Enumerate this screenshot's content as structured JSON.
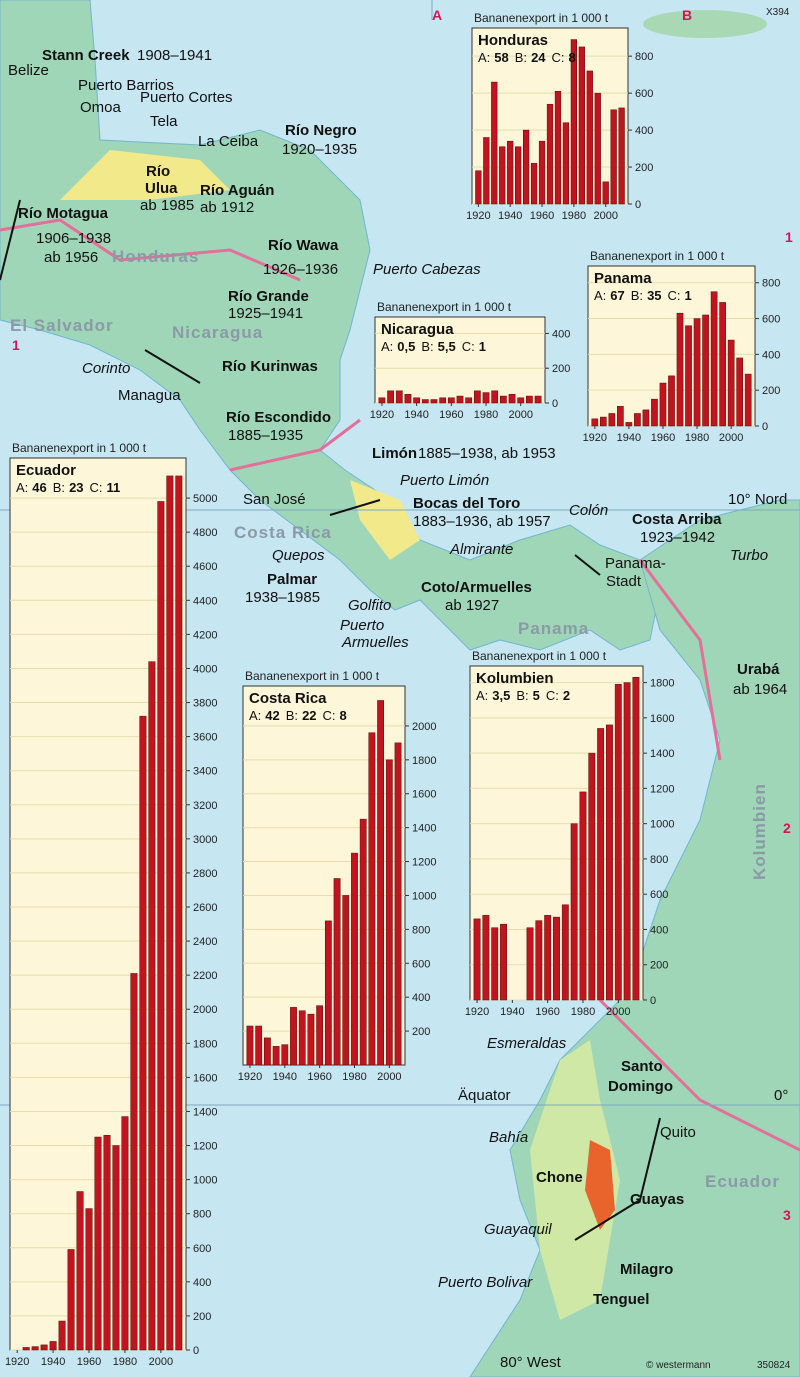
{
  "chart_data": [
    {
      "type": "bar",
      "title": "Bananenexport in 1 000 t",
      "country": "Honduras",
      "stats": [
        {
          "label": "A:",
          "value": "58"
        },
        {
          "label": "B:",
          "value": "24"
        },
        {
          "label": "C:",
          "value": "8"
        }
      ],
      "x": [
        1920,
        1925,
        1930,
        1935,
        1940,
        1945,
        1950,
        1955,
        1960,
        1965,
        1970,
        1975,
        1980,
        1985,
        1990,
        1995,
        2000,
        2005,
        2010
      ],
      "values": [
        180,
        360,
        660,
        310,
        340,
        310,
        400,
        220,
        340,
        540,
        610,
        440,
        890,
        850,
        720,
        600,
        120,
        510,
        520
      ],
      "xlim": [
        1916,
        2014
      ],
      "xticks": [
        1920,
        1940,
        1960,
        1980,
        2000
      ],
      "ylim": [
        0,
        920
      ],
      "yticks": [
        0,
        200,
        400,
        600,
        800
      ],
      "grid": true,
      "color": "#c0141e"
    },
    {
      "type": "bar",
      "title": "Bananenexport in 1 000 t",
      "country": "Nicaragua",
      "stats": [
        {
          "label": "A:",
          "value": "0,5"
        },
        {
          "label": "B:",
          "value": "5,5"
        },
        {
          "label": "C:",
          "value": "1"
        }
      ],
      "x": [
        1920,
        1925,
        1930,
        1935,
        1940,
        1945,
        1950,
        1955,
        1960,
        1965,
        1970,
        1975,
        1980,
        1985,
        1990,
        1995,
        2000,
        2005,
        2010
      ],
      "values": [
        30,
        70,
        70,
        50,
        30,
        20,
        20,
        30,
        30,
        40,
        30,
        70,
        60,
        70,
        40,
        50,
        30,
        40,
        40
      ],
      "xlim": [
        1916,
        2014
      ],
      "xticks": [
        1920,
        1940,
        1960,
        1980,
        2000
      ],
      "ylim": [
        0,
        460
      ],
      "yticks": [
        0,
        200,
        400
      ],
      "grid": true,
      "color": "#c0141e"
    },
    {
      "type": "bar",
      "title": "Bananenexport in 1 000 t",
      "country": "Panama",
      "stats": [
        {
          "label": "A:",
          "value": "67"
        },
        {
          "label": "B:",
          "value": "35"
        },
        {
          "label": "C:",
          "value": "1"
        }
      ],
      "x": [
        1920,
        1925,
        1930,
        1935,
        1940,
        1945,
        1950,
        1955,
        1960,
        1965,
        1970,
        1975,
        1980,
        1985,
        1990,
        1995,
        2000,
        2005,
        2010
      ],
      "values": [
        40,
        50,
        70,
        110,
        20,
        70,
        90,
        150,
        240,
        280,
        630,
        560,
        600,
        620,
        750,
        690,
        480,
        380,
        290
      ],
      "xlim": [
        1916,
        2014
      ],
      "xticks": [
        1920,
        1940,
        1960,
        1980,
        2000
      ],
      "ylim": [
        0,
        860
      ],
      "yticks": [
        0,
        200,
        400,
        600,
        800
      ],
      "grid": true,
      "color": "#c0141e"
    },
    {
      "type": "bar",
      "title": "Bananenexport in 1 000 t",
      "country": "Ecuador",
      "stats": [
        {
          "label": "A:",
          "value": "46"
        },
        {
          "label": "B:",
          "value": "23"
        },
        {
          "label": "C:",
          "value": "11"
        }
      ],
      "x": [
        1925,
        1930,
        1935,
        1940,
        1945,
        1950,
        1955,
        1960,
        1965,
        1970,
        1975,
        1980,
        1985,
        1990,
        1995,
        2000,
        2005,
        2010
      ],
      "values": [
        15,
        20,
        30,
        50,
        170,
        590,
        930,
        830,
        1250,
        1260,
        1200,
        1370,
        2210,
        3720,
        4040,
        4980,
        5130,
        5130
      ],
      "xlim": [
        1916,
        2014
      ],
      "xticks": [
        1920,
        1940,
        1960,
        1980,
        2000
      ],
      "ylim": [
        0,
        5200
      ],
      "yticks": [
        0,
        200,
        400,
        600,
        800,
        1000,
        1200,
        1400,
        1600,
        1800,
        2000,
        2200,
        2400,
        2600,
        2800,
        3000,
        3200,
        3400,
        3600,
        3800,
        4000,
        4200,
        4400,
        4600,
        4800,
        5000
      ],
      "grid": true,
      "color": "#c0141e"
    },
    {
      "type": "bar",
      "title": "Bananenexport in 1 000 t",
      "country": "Costa Rica",
      "stats": [
        {
          "label": "A:",
          "value": "42"
        },
        {
          "label": "B:",
          "value": "22"
        },
        {
          "label": "C:",
          "value": "8"
        }
      ],
      "x": [
        1920,
        1925,
        1930,
        1935,
        1940,
        1945,
        1950,
        1955,
        1960,
        1965,
        1970,
        1975,
        1980,
        1985,
        1990,
        1995,
        2000,
        2005
      ],
      "values": [
        230,
        230,
        160,
        110,
        120,
        340,
        320,
        300,
        350,
        850,
        1100,
        1000,
        1250,
        1450,
        1960,
        2150,
        1800,
        1900
      ],
      "xlim": [
        1916,
        2009
      ],
      "xticks": [
        1920,
        1940,
        1960,
        1980,
        2000
      ],
      "ylim": [
        0,
        2200
      ],
      "yticks": [
        200,
        400,
        600,
        800,
        1000,
        1200,
        1400,
        1600,
        1800,
        2000
      ],
      "grid": true,
      "color": "#c0141e"
    },
    {
      "type": "bar",
      "title": "Bananenexport in 1 000 t",
      "country": "Kolumbien",
      "stats": [
        {
          "label": "A:",
          "value": "3,5"
        },
        {
          "label": "B:",
          "value": "5"
        },
        {
          "label": "C:",
          "value": "2"
        }
      ],
      "x": [
        1920,
        1925,
        1930,
        1935,
        1950,
        1955,
        1960,
        1965,
        1970,
        1975,
        1980,
        1985,
        1990,
        1995,
        2000,
        2005,
        2010
      ],
      "values": [
        460,
        480,
        410,
        430,
        410,
        450,
        480,
        470,
        540,
        1000,
        1180,
        1400,
        1540,
        1560,
        1790,
        1800,
        1830
      ],
      "xlim": [
        1916,
        2014
      ],
      "xticks": [
        1920,
        1940,
        1960,
        1980,
        2000
      ],
      "ylim": [
        0,
        1860
      ],
      "yticks": [
        0,
        200,
        400,
        600,
        800,
        1000,
        1200,
        1400,
        1600,
        1800
      ],
      "grid": true,
      "color": "#c0141e"
    }
  ],
  "map": {
    "labels": [
      "A",
      "B",
      "X394",
      "1",
      "1",
      "2",
      "3",
      "Belize",
      "Stann Creek",
      "1908–1941",
      "Puerto Barrios",
      "Omoa",
      "Puerto Cortes",
      "Tela",
      "La Ceiba",
      "Río Negro",
      "1920–1935",
      "Río",
      "Ulua",
      "ab 1985",
      "Río Aguán",
      "ab 1912",
      "Río Motagua",
      "1906–1938",
      "ab 1956",
      "Honduras",
      "Río Wawa",
      "1926–1936",
      "Puerto Cabezas",
      "Río Grande",
      "1925–1941",
      "El Salvador",
      "Nicaragua",
      "Corinto",
      "Managua",
      "Río Kurinwas",
      "Río Escondido",
      "1885–1935",
      "Limón",
      "1885–1938, ab 1953",
      "Puerto Limón",
      "Bocas del Toro",
      "1883–1936, ab 1957",
      "San José",
      "Costa Rica",
      "Almirante",
      "Quepos",
      "Palmar",
      "1938–1985",
      "Golfito",
      "Coto/Armuelles",
      "ab 1927",
      "Puerto",
      "Armuelles",
      "Colón",
      "Costa Arriba",
      "1923–1942",
      "Panama-",
      "Stadt",
      "10° Nord",
      "Panama",
      "Turbo",
      "Urabá",
      "ab 1964",
      "Kolumbien",
      "Esmeraldas",
      "Santo",
      "Domingo",
      "Äquator",
      "0°",
      "Quito",
      "Bahía",
      "Chone",
      "Guayas",
      "Ecuador",
      "Guayaquil",
      "Milagro",
      "Puerto Bolivar",
      "Tenguel",
      "80° West",
      "© westermann",
      "350824"
    ]
  }
}
